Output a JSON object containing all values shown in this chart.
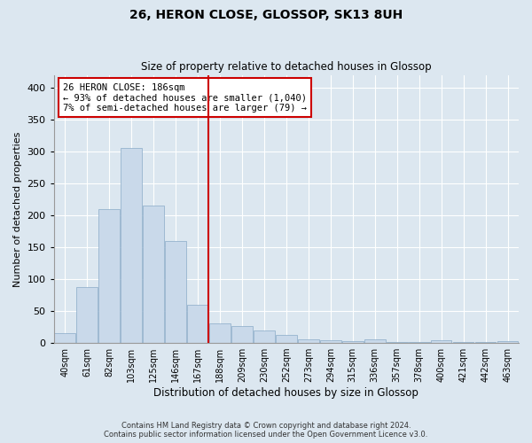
{
  "title": "26, HERON CLOSE, GLOSSOP, SK13 8UH",
  "subtitle": "Size of property relative to detached houses in Glossop",
  "xlabel": "Distribution of detached houses by size in Glossop",
  "ylabel": "Number of detached properties",
  "bar_color": "#c9d9ea",
  "bar_edge_color": "#8aaac8",
  "background_color": "#dce7f0",
  "fig_color": "#dce7f0",
  "grid_color": "#ffffff",
  "annotation_line_color": "#cc0000",
  "annotation_box_color": "#cc0000",
  "categories": [
    "40sqm",
    "61sqm",
    "82sqm",
    "103sqm",
    "125sqm",
    "146sqm",
    "167sqm",
    "188sqm",
    "209sqm",
    "230sqm",
    "252sqm",
    "273sqm",
    "294sqm",
    "315sqm",
    "336sqm",
    "357sqm",
    "378sqm",
    "400sqm",
    "421sqm",
    "442sqm",
    "463sqm"
  ],
  "values": [
    15,
    88,
    210,
    305,
    215,
    160,
    60,
    30,
    27,
    20,
    13,
    5,
    4,
    3,
    5,
    2,
    2,
    4,
    2,
    2,
    3
  ],
  "ylim": [
    0,
    420
  ],
  "yticks": [
    0,
    50,
    100,
    150,
    200,
    250,
    300,
    350,
    400
  ],
  "property_bin_index": 7,
  "annotation_title": "26 HERON CLOSE: 186sqm",
  "annotation_line1": "← 93% of detached houses are smaller (1,040)",
  "annotation_line2": "7% of semi-detached houses are larger (79) →",
  "footer_line1": "Contains HM Land Registry data © Crown copyright and database right 2024.",
  "footer_line2": "Contains public sector information licensed under the Open Government Licence v3.0."
}
